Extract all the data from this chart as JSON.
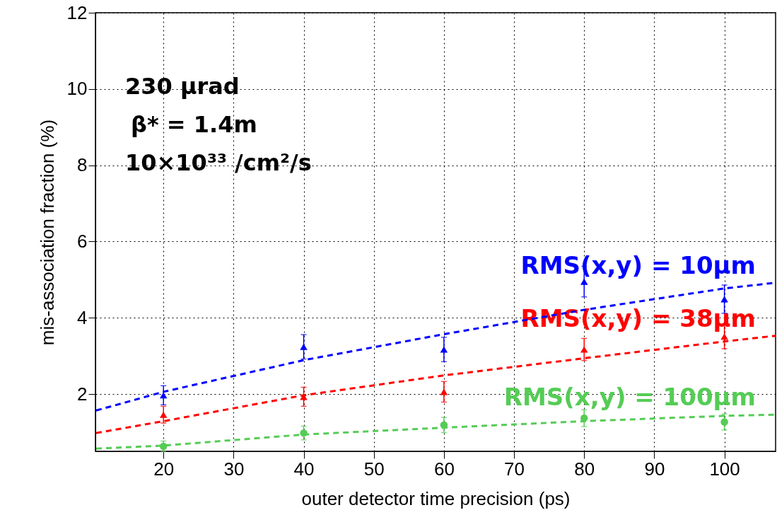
{
  "chart_data": {
    "type": "scatter",
    "xlabel": "outer detector time precision (ps)",
    "ylabel": "mis-association fraction (%)",
    "xlim": [
      10.3,
      107.3
    ],
    "ylim": [
      0.5,
      12
    ],
    "xticks": [
      20,
      30,
      40,
      50,
      60,
      70,
      80,
      90,
      100
    ],
    "yticks": [
      2,
      4,
      6,
      8,
      10,
      12
    ],
    "grid": true,
    "annotations": [
      "230 µrad",
      "β* = 1.4m",
      "10×10³³ /cm²/s"
    ],
    "series": [
      {
        "name": "RMS(x,y) = 10µm",
        "color": "#0000ff",
        "marker": "triangle",
        "x": [
          20,
          40,
          60,
          80,
          100
        ],
        "values": [
          1.97,
          3.24,
          3.17,
          4.95,
          4.49
        ],
        "errors": [
          0.25,
          0.32,
          0.32,
          0.4,
          0.37
        ]
      },
      {
        "name": "RMS(x,y) = 38µm",
        "color": "#ff0000",
        "marker": "triangle",
        "x": [
          20,
          40,
          60,
          80,
          100
        ],
        "values": [
          1.46,
          1.93,
          2.06,
          3.17,
          3.51
        ],
        "errors": [
          0.22,
          0.25,
          0.27,
          0.29,
          0.32
        ]
      },
      {
        "name": "RMS(x,y) = 100µm",
        "color": "#55cc55",
        "marker": "circle",
        "x": [
          20,
          40,
          60,
          80,
          100
        ],
        "values": [
          0.63,
          0.98,
          1.19,
          1.37,
          1.27
        ],
        "errors": [
          0.14,
          0.18,
          0.2,
          0.22,
          0.21
        ]
      },
      {
        "type": "line",
        "color": "#0000ff",
        "line_style": "dashed",
        "x": [
          10.4,
          20,
          40,
          60,
          80,
          100,
          107.3
        ],
        "values": [
          1.57,
          2.06,
          2.89,
          3.57,
          4.21,
          4.77,
          4.92
        ]
      },
      {
        "type": "line",
        "color": "#ff0000",
        "line_style": "dashed",
        "x": [
          10.4,
          20,
          40,
          60,
          80,
          100,
          107.3
        ],
        "values": [
          0.98,
          1.29,
          1.97,
          2.49,
          2.94,
          3.38,
          3.53
        ]
      },
      {
        "type": "line",
        "color": "#55cc55",
        "line_style": "dashed",
        "x": [
          10.4,
          20,
          40,
          60,
          80,
          100,
          107.3
        ],
        "values": [
          0.57,
          0.65,
          0.94,
          1.12,
          1.29,
          1.43,
          1.46
        ]
      }
    ]
  }
}
